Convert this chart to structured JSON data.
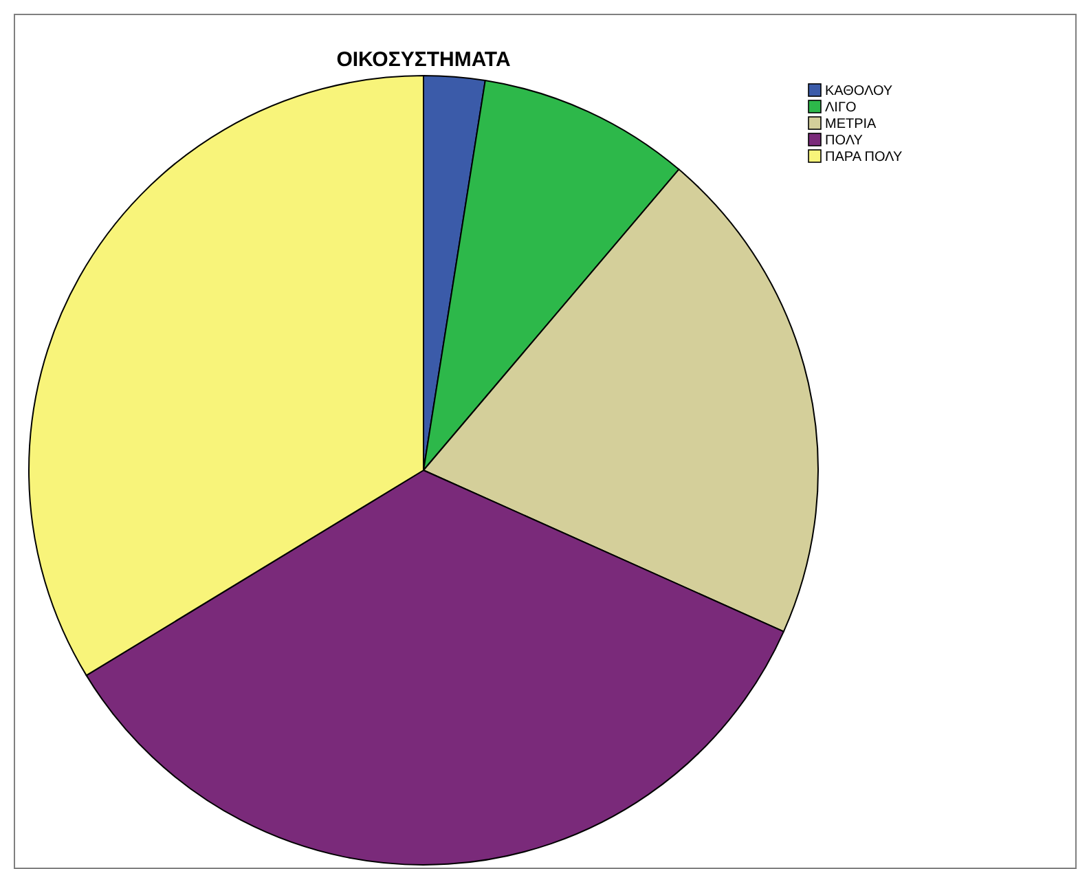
{
  "chart_data": {
    "type": "pie",
    "title": "ΟΙΚΟΣΥΣΤΗΜΑΤΑ",
    "categories": [
      "ΚΑΘΟΛΟΥ",
      "ΛΙΓΟ",
      "ΜΕΤΡΙΑ",
      "ΠΟΛΥ",
      "ΠΑΡΑ ΠΟΛΥ"
    ],
    "values": [
      2.5,
      8.7,
      20.5,
      34.6,
      33.7
    ],
    "colors": [
      "#3b5ba9",
      "#2db84a",
      "#d4cf9a",
      "#7a2a7a",
      "#f8f47a"
    ],
    "legend": "top right"
  }
}
